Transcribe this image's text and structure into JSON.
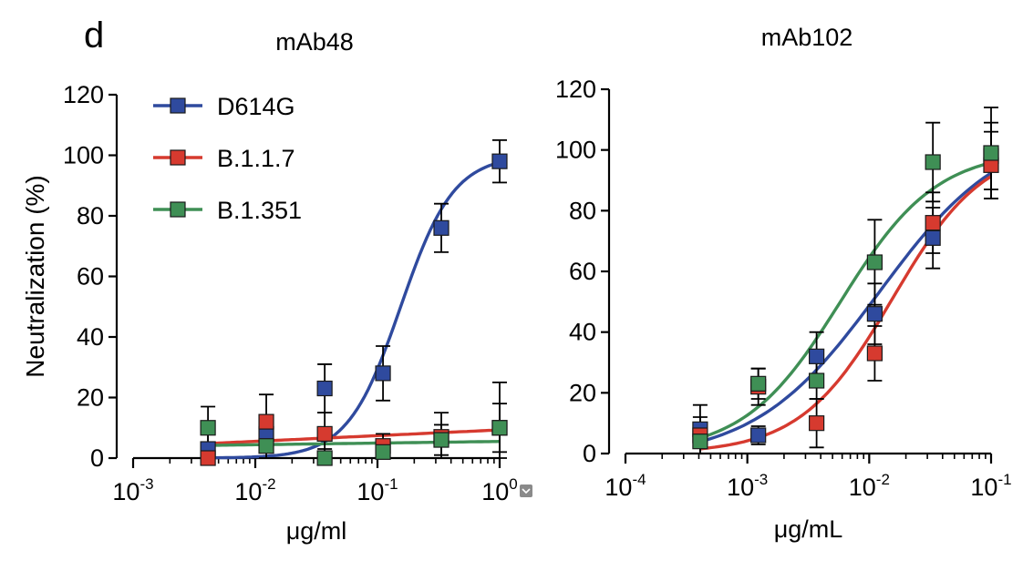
{
  "panel_label": "d",
  "colors": {
    "D614G": "#2f4a9e",
    "B.1.1.7": "#d63a2f",
    "B.1.351": "#3f8f55",
    "axis": "#000000",
    "errorbar": "#000000"
  },
  "legend": {
    "placement": "top-left of left panel",
    "entries": [
      "D614G",
      "B.1.1.7",
      "B.1.351"
    ]
  },
  "chart_data": [
    {
      "type": "scatter",
      "title": "mAb48",
      "xlabel": "μg/ml",
      "ylabel": "Neutralization (%)",
      "xscale": "log",
      "xlim": [
        0.001,
        1
      ],
      "ylim": [
        0,
        120
      ],
      "x_ticks": [
        {
          "value": 0.001,
          "base": "10",
          "exp": "-3"
        },
        {
          "value": 0.01,
          "base": "10",
          "exp": "-2"
        },
        {
          "value": 0.1,
          "base": "10",
          "exp": "-1"
        },
        {
          "value": 1,
          "base": "10",
          "exp": "0"
        }
      ],
      "y_ticks": [
        0,
        20,
        40,
        60,
        80,
        100,
        120
      ],
      "grid": false,
      "series": [
        {
          "name": "D614G",
          "x": [
            0.0041,
            0.0123,
            0.037,
            0.111,
            0.333,
            1.0
          ],
          "y": [
            3,
            8,
            23,
            28,
            76,
            98
          ],
          "err": [
            5,
            6,
            8,
            9,
            8,
            7
          ],
          "fit": {
            "bottom": 0,
            "top": 100,
            "ec50": 0.155,
            "hill": 2.0
          }
        },
        {
          "name": "B.1.1.7",
          "x": [
            0.0041,
            0.0123,
            0.037,
            0.111,
            0.333,
            1.0
          ],
          "y": [
            0,
            12,
            8,
            4,
            7,
            10
          ],
          "err": [
            3,
            9,
            7,
            4,
            8,
            8
          ],
          "fit": {
            "type": "linear-log",
            "y_at_min": 4.8,
            "y_at_max": 9.3
          }
        },
        {
          "name": "B.1.351",
          "x": [
            0.0041,
            0.0123,
            0.037,
            0.111,
            0.333,
            1.0
          ],
          "y": [
            10,
            4,
            0,
            2,
            6,
            10
          ],
          "err": [
            7,
            4,
            3,
            3,
            5,
            15
          ],
          "fit": {
            "type": "linear-log",
            "y_at_min": 4.2,
            "y_at_max": 5.5
          }
        }
      ]
    },
    {
      "type": "scatter",
      "title": "mAb102",
      "xlabel": "μg/mL",
      "ylabel": "",
      "xscale": "log",
      "xlim": [
        0.0001,
        0.1
      ],
      "ylim": [
        0,
        120
      ],
      "x_ticks": [
        {
          "value": 0.0001,
          "base": "10",
          "exp": "-4"
        },
        {
          "value": 0.001,
          "base": "10",
          "exp": "-3"
        },
        {
          "value": 0.01,
          "base": "10",
          "exp": "-2"
        },
        {
          "value": 0.1,
          "base": "10",
          "exp": "-1"
        }
      ],
      "y_ticks": [
        0,
        20,
        40,
        60,
        80,
        100,
        120
      ],
      "grid": false,
      "series": [
        {
          "name": "D614G",
          "x": [
            0.00041,
            0.00123,
            0.0037,
            0.0111,
            0.0333,
            0.1
          ],
          "y": [
            8,
            6,
            32,
            46,
            71,
            98
          ],
          "err": [
            8,
            3,
            8,
            10,
            10,
            11
          ],
          "fit": {
            "bottom": -2,
            "top": 108,
            "ec50": 0.012,
            "hill": 0.85
          }
        },
        {
          "name": "B.1.1.7",
          "x": [
            0.00041,
            0.00123,
            0.0037,
            0.0111,
            0.0333,
            0.1
          ],
          "y": [
            6,
            22,
            10,
            33,
            76,
            95
          ],
          "err": [
            6,
            6,
            8,
            9,
            10,
            11
          ],
          "fit": {
            "bottom": 0,
            "top": 102,
            "ec50": 0.0155,
            "hill": 1.15
          }
        },
        {
          "name": "B.1.351",
          "x": [
            0.00041,
            0.00123,
            0.0037,
            0.0111,
            0.0333,
            0.1
          ],
          "y": [
            4,
            23,
            24,
            63,
            96,
            99
          ],
          "err": [
            5,
            5,
            6,
            14,
            13,
            15
          ],
          "fit": {
            "bottom": 0,
            "top": 100,
            "ec50": 0.0058,
            "hill": 1.1
          }
        }
      ]
    }
  ]
}
